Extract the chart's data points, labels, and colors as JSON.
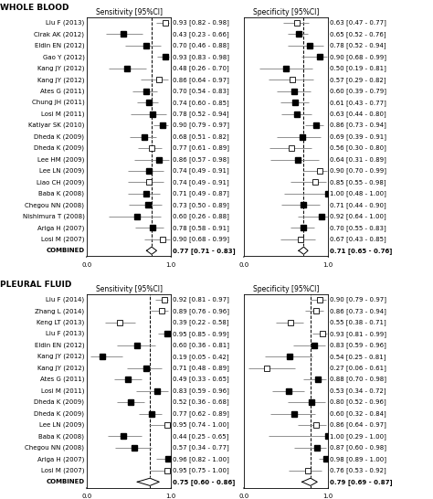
{
  "wb_labels": [
    "Liu F (2013)",
    "Cirak AK (2012)",
    "Eldin EN (2012)",
    "Gao Y (2012)",
    "Kang JY (2012)",
    "Kang JY (2012)",
    "Ates G (2011)",
    "Chung JH (2011)",
    "Losi M (2011)",
    "Katiyar SK (2010)",
    "Dheda K (2009)",
    "Dheda K (2009)",
    "Lee HM (2009)",
    "Lee LN (2009)",
    "Liao CH (2009)",
    "Baba K (2008)",
    "Chegou NN (2008)",
    "Nishimura T (2008)",
    "Ariga H (2007)",
    "Losi M (2007)",
    "COMBINED"
  ],
  "wb_sens": [
    0.93,
    0.43,
    0.7,
    0.93,
    0.48,
    0.86,
    0.7,
    0.74,
    0.78,
    0.9,
    0.68,
    0.77,
    0.86,
    0.74,
    0.74,
    0.71,
    0.73,
    0.6,
    0.78,
    0.9,
    0.77
  ],
  "wb_sens_lo": [
    0.82,
    0.23,
    0.46,
    0.83,
    0.26,
    0.64,
    0.54,
    0.6,
    0.52,
    0.79,
    0.51,
    0.61,
    0.57,
    0.49,
    0.49,
    0.49,
    0.5,
    0.26,
    0.58,
    0.68,
    0.71
  ],
  "wb_sens_hi": [
    0.98,
    0.66,
    0.88,
    0.98,
    0.7,
    0.97,
    0.83,
    0.85,
    0.94,
    0.97,
    0.82,
    0.89,
    0.98,
    0.91,
    0.91,
    0.87,
    0.89,
    0.88,
    0.91,
    0.99,
    0.83
  ],
  "wb_sens_open": [
    true,
    false,
    false,
    false,
    false,
    true,
    false,
    false,
    false,
    false,
    false,
    true,
    false,
    false,
    true,
    false,
    false,
    false,
    false,
    true,
    false
  ],
  "wb_spec": [
    0.63,
    0.65,
    0.78,
    0.9,
    0.5,
    0.57,
    0.6,
    0.61,
    0.63,
    0.86,
    0.69,
    0.56,
    0.64,
    0.9,
    0.85,
    1.0,
    0.71,
    0.92,
    0.7,
    0.67,
    0.71
  ],
  "wb_spec_lo": [
    0.47,
    0.52,
    0.52,
    0.68,
    0.19,
    0.29,
    0.39,
    0.43,
    0.44,
    0.73,
    0.39,
    0.3,
    0.31,
    0.7,
    0.55,
    0.48,
    0.44,
    0.64,
    0.55,
    0.43,
    0.65
  ],
  "wb_spec_hi": [
    0.77,
    0.76,
    0.94,
    0.99,
    0.81,
    0.82,
    0.79,
    0.77,
    0.8,
    0.94,
    0.91,
    0.8,
    0.89,
    0.99,
    0.98,
    1.0,
    0.9,
    1.0,
    0.83,
    0.85,
    0.76
  ],
  "wb_spec_open": [
    true,
    false,
    false,
    false,
    false,
    true,
    false,
    false,
    false,
    false,
    false,
    true,
    false,
    true,
    true,
    false,
    false,
    false,
    false,
    true,
    false
  ],
  "wb_sens_text": [
    "0.93 [0.82 - 0.98]",
    "0.43 [0.23 - 0.66]",
    "0.70 [0.46 - 0.88]",
    "0.93 [0.83 - 0.98]",
    "0.48 [0.26 - 0.70]",
    "0.86 [0.64 - 0.97]",
    "0.70 [0.54 - 0.83]",
    "0.74 [0.60 - 0.85]",
    "0.78 [0.52 - 0.94]",
    "0.90 [0.79 - 0.97]",
    "0.68 [0.51 - 0.82]",
    "0.77 [0.61 - 0.89]",
    "0.86 [0.57 - 0.98]",
    "0.74 [0.49 - 0.91]",
    "0.74 [0.49 - 0.91]",
    "0.71 [0.49 - 0.87]",
    "0.73 [0.50 - 0.89]",
    "0.60 [0.26 - 0.88]",
    "0.78 [0.58 - 0.91]",
    "0.90 [0.68 - 0.99]",
    "0.77 [0.71 - 0.83]"
  ],
  "wb_spec_text": [
    "0.63 [0.47 - 0.77]",
    "0.65 [0.52 - 0.76]",
    "0.78 [0.52 - 0.94]",
    "0.90 [0.68 - 0.99]",
    "0.50 [0.19 - 0.81]",
    "0.57 [0.29 - 0.82]",
    "0.60 [0.39 - 0.79]",
    "0.61 [0.43 - 0.77]",
    "0.63 [0.44 - 0.80]",
    "0.86 [0.73 - 0.94]",
    "0.69 [0.39 - 0.91]",
    "0.56 [0.30 - 0.80]",
    "0.64 [0.31 - 0.89]",
    "0.90 [0.70 - 0.99]",
    "0.85 [0.55 - 0.98]",
    "1.00 [0.48 - 1.00]",
    "0.71 [0.44 - 0.90]",
    "0.92 [0.64 - 1.00]",
    "0.70 [0.55 - 0.83]",
    "0.67 [0.43 - 0.85]",
    "0.71 [0.65 - 0.76]"
  ],
  "pf_labels": [
    "Liu F (2014)",
    "Zhang L (2014)",
    "Keng LT (2013)",
    "Liu F (2013)",
    "Eldin EN (2012)",
    "Kang JY (2012)",
    "Kang JY (2012)",
    "Ates G (2011)",
    "Losi M (2011)",
    "Dheda K (2009)",
    "Dheda K (2009)",
    "Lee LN (2009)",
    "Baba K (2008)",
    "Chegou NN (2008)",
    "Ariga H (2007)",
    "Losi M (2007)",
    "COMBINED"
  ],
  "pf_sens": [
    0.92,
    0.89,
    0.39,
    0.95,
    0.6,
    0.19,
    0.71,
    0.49,
    0.83,
    0.52,
    0.77,
    0.95,
    0.44,
    0.57,
    0.96,
    0.95,
    0.75
  ],
  "pf_sens_lo": [
    0.81,
    0.76,
    0.22,
    0.85,
    0.36,
    0.05,
    0.48,
    0.33,
    0.59,
    0.36,
    0.62,
    0.74,
    0.25,
    0.34,
    0.82,
    0.75,
    0.6
  ],
  "pf_sens_hi": [
    0.97,
    0.96,
    0.58,
    0.99,
    0.81,
    0.42,
    0.89,
    0.65,
    0.96,
    0.68,
    0.89,
    1.0,
    0.65,
    0.77,
    1.0,
    1.0,
    0.86
  ],
  "pf_sens_open": [
    true,
    true,
    true,
    false,
    false,
    false,
    false,
    false,
    false,
    false,
    false,
    true,
    false,
    false,
    false,
    true,
    false
  ],
  "pf_spec": [
    0.9,
    0.86,
    0.55,
    0.93,
    0.83,
    0.54,
    0.27,
    0.88,
    0.53,
    0.8,
    0.6,
    0.86,
    1.0,
    0.87,
    0.98,
    0.76,
    0.79
  ],
  "pf_spec_lo": [
    0.79,
    0.73,
    0.38,
    0.81,
    0.59,
    0.25,
    0.06,
    0.7,
    0.34,
    0.52,
    0.32,
    0.64,
    0.29,
    0.6,
    0.89,
    0.53,
    0.69
  ],
  "pf_spec_hi": [
    0.97,
    0.94,
    0.71,
    0.99,
    0.96,
    0.81,
    0.61,
    0.98,
    0.72,
    0.96,
    0.84,
    0.97,
    1.0,
    0.98,
    1.0,
    0.92,
    0.87
  ],
  "pf_spec_open": [
    true,
    true,
    true,
    true,
    false,
    false,
    true,
    false,
    false,
    false,
    false,
    true,
    false,
    false,
    false,
    true,
    false
  ],
  "pf_sens_text": [
    "0.92 [0.81 - 0.97]",
    "0.89 [0.76 - 0.96]",
    "0.39 [0.22 - 0.58]",
    "0.95 [0.85 - 0.99]",
    "0.60 [0.36 - 0.81]",
    "0.19 [0.05 - 0.42]",
    "0.71 [0.48 - 0.89]",
    "0.49 [0.33 - 0.65]",
    "0.83 [0.59 - 0.96]",
    "0.52 [0.36 - 0.68]",
    "0.77 [0.62 - 0.89]",
    "0.95 [0.74 - 1.00]",
    "0.44 [0.25 - 0.65]",
    "0.57 [0.34 - 0.77]",
    "0.96 [0.82 - 1.00]",
    "0.95 [0.75 - 1.00]",
    "0.75 [0.60 - 0.86]"
  ],
  "pf_spec_text": [
    "0.90 [0.79 - 0.97]",
    "0.86 [0.73 - 0.94]",
    "0.55 [0.38 - 0.71]",
    "0.93 [0.81 - 0.99]",
    "0.83 [0.59 - 0.96]",
    "0.54 [0.25 - 0.81]",
    "0.27 [0.06 - 0.61]",
    "0.88 [0.70 - 0.98]",
    "0.53 [0.34 - 0.72]",
    "0.80 [0.52 - 0.96]",
    "0.60 [0.32 - 0.84]",
    "0.86 [0.64 - 0.97]",
    "1.00 [0.29 - 1.00]",
    "0.87 [0.60 - 0.98]",
    "0.98 [0.89 - 1.00]",
    "0.76 [0.53 - 0.92]",
    "0.79 [0.69 - 0.87]"
  ],
  "fig_width": 4.74,
  "fig_height": 5.46,
  "dpi": 100
}
